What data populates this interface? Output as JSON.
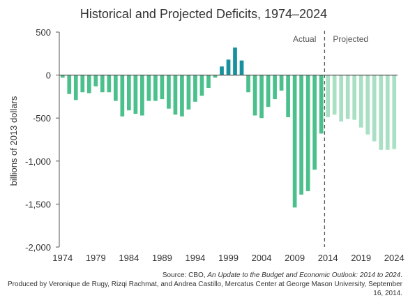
{
  "chart_data": {
    "type": "bar",
    "title": "Historical and Projected Deficits, 1974–2024",
    "xlabel": "",
    "ylabel": "billions of 2013 dollars",
    "ylim": [
      -2000,
      500
    ],
    "yticks": [
      500,
      0,
      -500,
      -1000,
      -1500,
      -2000
    ],
    "ytick_labels": [
      "500",
      "0",
      "-500",
      "-1,000",
      "-1,500",
      "-2,000"
    ],
    "xticks": [
      "1974",
      "1979",
      "1984",
      "1989",
      "1994",
      "1999",
      "2004",
      "2009",
      "2014",
      "2019",
      "2024"
    ],
    "annotations": {
      "actual": "Actual",
      "projected": "Projected"
    },
    "grid": false,
    "colors": {
      "deficit": "#4cc08c",
      "surplus": "#17919d",
      "projected": "#a9e0c4",
      "divider": "#555555",
      "axis": "#555555"
    },
    "categories": [
      "1974",
      "1975",
      "1976",
      "1977",
      "1978",
      "1979",
      "1980",
      "1981",
      "1982",
      "1983",
      "1984",
      "1985",
      "1986",
      "1987",
      "1988",
      "1989",
      "1990",
      "1991",
      "1992",
      "1993",
      "1994",
      "1995",
      "1996",
      "1997",
      "1998",
      "1999",
      "2000",
      "2001",
      "2002",
      "2003",
      "2004",
      "2005",
      "2006",
      "2007",
      "2008",
      "2009",
      "2010",
      "2011",
      "2012",
      "2013",
      "2014",
      "2015",
      "2016",
      "2017",
      "2018",
      "2019",
      "2020",
      "2021",
      "2022",
      "2023",
      "2024"
    ],
    "series": [
      {
        "values": [
          -30,
          -220,
          -290,
          -200,
          -210,
          -130,
          -200,
          -200,
          -300,
          -480,
          -410,
          -450,
          -470,
          -300,
          -300,
          -280,
          -390,
          -460,
          -480,
          -400,
          -310,
          -240,
          -150,
          -30,
          100,
          180,
          320,
          170,
          -200,
          -470,
          -500,
          -370,
          -280,
          -180,
          -490,
          -1540,
          -1390,
          -1350,
          -1100,
          -680,
          -490,
          -460,
          -540,
          -510,
          -520,
          -610,
          -690,
          -770,
          -870,
          -870,
          -860
        ]
      }
    ],
    "projected_from": "2014"
  },
  "source": {
    "prefix": "Source: CBO,",
    "title": "An Update to the Budget and Economic Outlook: 2014 to 2024",
    "suffix": ".",
    "credit": "Produced by Veronique de Rugy, Rizqi Rachmat, and Andrea Castillo, Mercatus Center at George Mason University, September 16, 2014."
  }
}
